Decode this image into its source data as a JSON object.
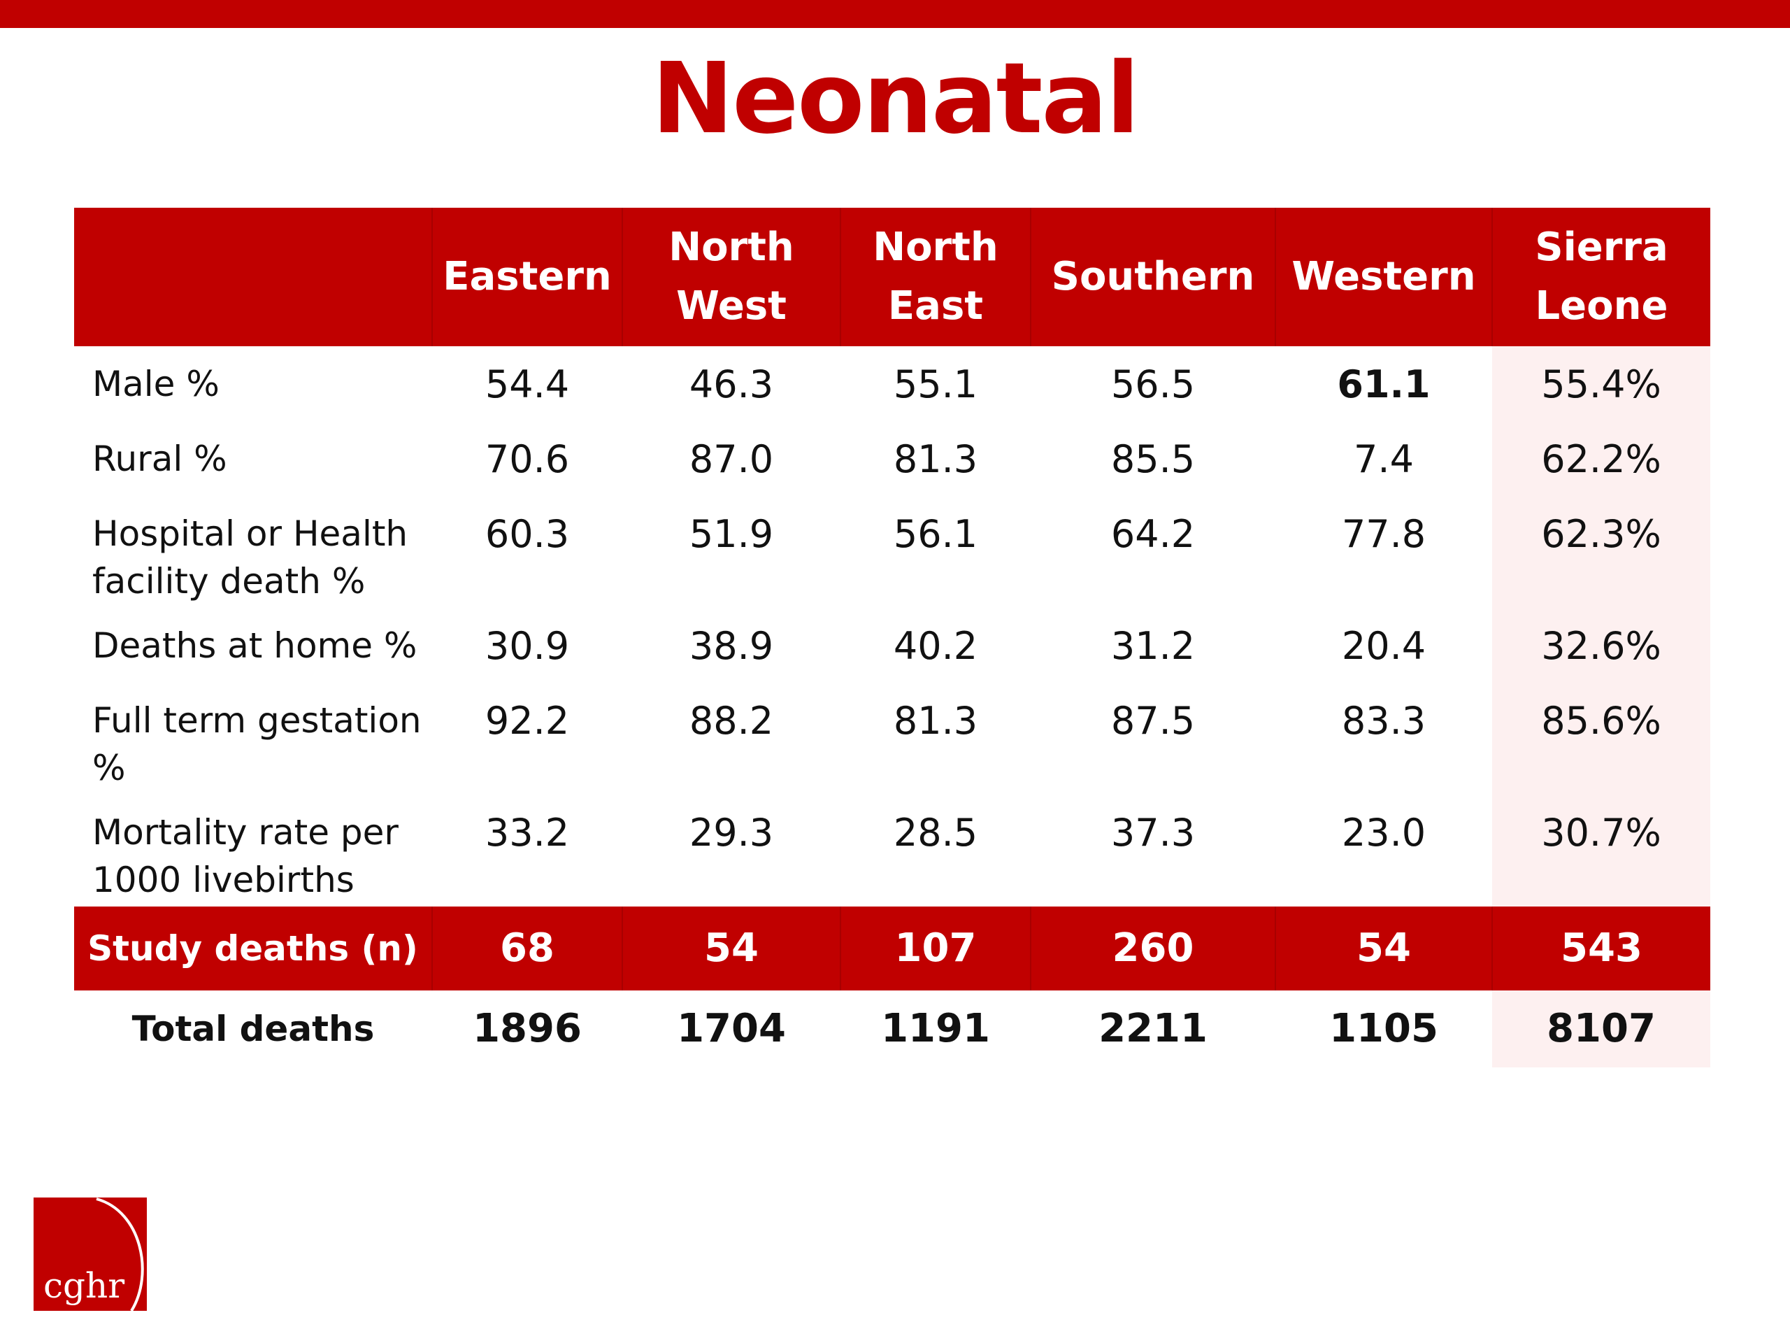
{
  "slide": {
    "title": "Neonatal"
  },
  "table": {
    "columns": [
      "",
      "Eastern",
      "North\nWest",
      "North\nEast",
      "Southern",
      "Western",
      "Sierra\nLeone"
    ],
    "rows": [
      {
        "label": "Male %",
        "values": [
          "54.4",
          "46.3",
          "55.1",
          "56.5",
          "61.1",
          "55.4%"
        ]
      },
      {
        "label": "Rural %",
        "values": [
          "70.6",
          "87.0",
          "81.3",
          "85.5",
          "7.4",
          "62.2%"
        ]
      },
      {
        "label": "Hospital or Health\nfacility death %",
        "values": [
          "60.3",
          "51.9",
          "56.1",
          "64.2",
          "77.8",
          "62.3%"
        ]
      },
      {
        "label": "Deaths at home %",
        "values": [
          "30.9",
          "38.9",
          "40.2",
          "31.2",
          "20.4",
          "32.6%"
        ]
      },
      {
        "label": "Full term gestation\n%",
        "values": [
          "92.2",
          "88.2",
          "81.3",
          "87.5",
          "83.3",
          "85.6%"
        ]
      },
      {
        "label": "Mortality rate per\n1000 livebirths",
        "values": [
          "33.2",
          "29.3",
          "28.5",
          "37.3",
          "23.0",
          "30.7%"
        ]
      }
    ],
    "study_deaths": {
      "label": "Study deaths (n)",
      "values": [
        "68",
        "54",
        "107",
        "260",
        "54",
        "543"
      ]
    },
    "total_deaths": {
      "label": "Total deaths",
      "values": [
        "1896",
        "1704",
        "1191",
        "2211",
        "1105",
        "8107"
      ]
    }
  },
  "logo": {
    "text": "cghr",
    "color": "#c00000"
  },
  "colors": {
    "accent": "#c00000",
    "highlight_column": "#fdf0f0"
  }
}
